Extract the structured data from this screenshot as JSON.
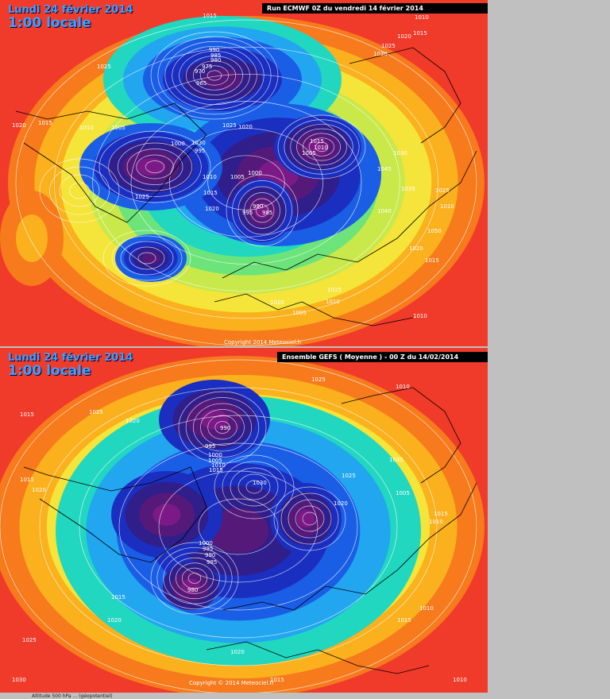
{
  "top": {
    "date": "Lundi 24 février 2014",
    "time": "1:00 locale",
    "run": "Run ECMWF 0Z du vendredi 14 février 2014",
    "copyright": "Copyright 2014 Meteociel.fr",
    "labels": [
      {
        "t": "1015"
      },
      {
        "t": "1010"
      },
      {
        "t": "1015"
      },
      {
        "t": "990"
      },
      {
        "t": "985"
      },
      {
        "t": "980"
      },
      {
        "t": "975"
      },
      {
        "t": "970"
      },
      {
        "t": "965"
      },
      {
        "t": "1025"
      },
      {
        "t": "1020"
      },
      {
        "t": "1030"
      },
      {
        "t": "1025"
      },
      {
        "t": "1020"
      },
      {
        "t": "1015"
      },
      {
        "t": "1010"
      },
      {
        "t": "1005"
      },
      {
        "t": "1000"
      },
      {
        "t": "995"
      },
      {
        "t": "1030"
      },
      {
        "t": "1025"
      },
      {
        "t": "1020"
      },
      {
        "t": "1015"
      },
      {
        "t": "1010"
      },
      {
        "t": "1005"
      },
      {
        "t": "985"
      },
      {
        "t": "990"
      },
      {
        "t": "995"
      },
      {
        "t": "1000"
      },
      {
        "t": "1005"
      },
      {
        "t": "1010"
      },
      {
        "t": "1015"
      },
      {
        "t": "1020"
      },
      {
        "t": "1025"
      },
      {
        "t": "1030"
      },
      {
        "t": "1035"
      },
      {
        "t": "1040"
      },
      {
        "t": "1045"
      },
      {
        "t": "1050"
      },
      {
        "t": "1015"
      },
      {
        "t": "1020"
      },
      {
        "t": "1025"
      },
      {
        "t": "1010"
      },
      {
        "t": "1015"
      },
      {
        "t": "1020"
      },
      {
        "t": "1005"
      },
      {
        "t": "1010"
      },
      {
        "t": "1010"
      }
    ]
  },
  "bottom": {
    "date": "Lundi 24 février 2014",
    "time": "1:00 locale",
    "run": "Ensemble GEFS ( Moyenne )  -  00 Z du 14/02/2014",
    "copyright": "Copyright © 2014 Meteociel.fr",
    "labels": [
      {
        "t": "1015"
      },
      {
        "t": "1025"
      },
      {
        "t": "1020"
      },
      {
        "t": "1015"
      },
      {
        "t": "1020"
      },
      {
        "t": "1010"
      },
      {
        "t": "1025"
      },
      {
        "t": "990"
      },
      {
        "t": "995"
      },
      {
        "t": "1000"
      },
      {
        "t": "1005"
      },
      {
        "t": "1010"
      },
      {
        "t": "1015"
      },
      {
        "t": "1030"
      },
      {
        "t": "1025"
      },
      {
        "t": "1035"
      },
      {
        "t": "1020"
      },
      {
        "t": "1015"
      },
      {
        "t": "1010"
      },
      {
        "t": "1005"
      },
      {
        "t": "1000"
      },
      {
        "t": "995"
      },
      {
        "t": "990"
      },
      {
        "t": "985"
      },
      {
        "t": "980"
      },
      {
        "t": "1015"
      },
      {
        "t": "1020"
      },
      {
        "t": "1025"
      },
      {
        "t": "1030"
      },
      {
        "t": "1015"
      },
      {
        "t": "1010"
      },
      {
        "t": "1020"
      },
      {
        "t": "1015"
      },
      {
        "t": "1010"
      }
    ]
  },
  "footer": "Altitude 500 hPa ... (géopotentiel)"
}
